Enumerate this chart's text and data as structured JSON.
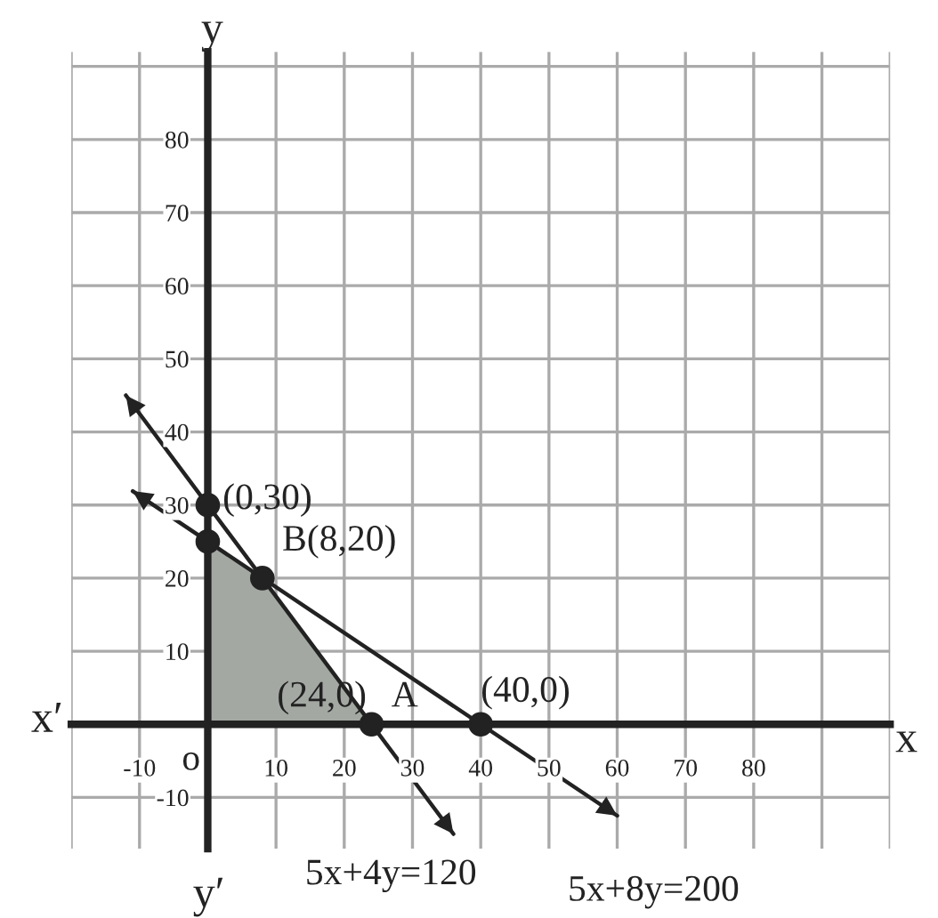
{
  "chart_data": {
    "type": "line",
    "xlabel": "x",
    "ylabel": "y",
    "xlim": [
      -20,
      100
    ],
    "ylim": [
      -17,
      92
    ],
    "xticks": [
      {
        "value": -20,
        "label": null
      },
      -10,
      {
        "value": 0,
        "label": null
      },
      10,
      20,
      30,
      40,
      50,
      60,
      70,
      80,
      {
        "value": 90,
        "label": null
      },
      {
        "value": 100,
        "label": null
      }
    ],
    "yticks": [
      -10,
      {
        "value": 0,
        "label": null
      },
      10,
      20,
      30,
      40,
      50,
      60,
      70,
      80,
      {
        "value": 90,
        "label": null
      }
    ],
    "grid": true,
    "legend": false,
    "series": [
      {
        "type": "area",
        "color": "#a3a8a3",
        "x": [
          0,
          0,
          8,
          24
        ],
        "values": [
          0,
          25,
          20,
          0
        ]
      },
      {
        "color": "#222222",
        "x": [
          -12,
          36
        ],
        "values": [
          45,
          -15
        ],
        "line_style": "solid"
      },
      {
        "color": "#222222",
        "x": [
          -11,
          60
        ],
        "values": [
          31.9,
          -12.5
        ],
        "line_style": "solid"
      },
      {
        "type": "scatter",
        "color": "#222222",
        "marker": "circle",
        "x": [
          0,
          0,
          8,
          24,
          40
        ],
        "values": [
          30,
          25,
          20,
          0,
          0
        ]
      }
    ],
    "annotations": [
      {
        "text": "(0,30)",
        "x": 0,
        "y": 30
      },
      {
        "text": "B(8,20)",
        "x": 8,
        "y": 20
      },
      {
        "text": "(24,0)",
        "x": 24,
        "y": 0
      },
      {
        "text": "A",
        "x": 24,
        "y": 0
      },
      {
        "text": "(40,0)",
        "x": 40,
        "y": 0
      },
      {
        "text": "o",
        "x": 0,
        "y": 0
      },
      {
        "text": "5x+4y=120",
        "x": 36,
        "y": -15
      },
      {
        "text": "5x+8y=200",
        "x": 60,
        "y": -12.5
      },
      "x′",
      "y′"
    ]
  }
}
